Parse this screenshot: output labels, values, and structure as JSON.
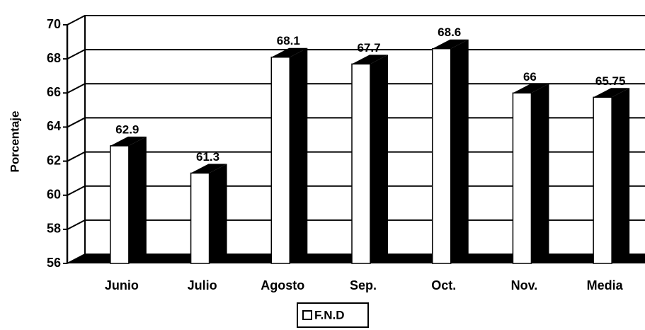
{
  "chart_data": {
    "type": "bar3d",
    "y_label": "Porcentaje",
    "categories": [
      "Junio",
      "Julio",
      "Agosto",
      "Sep.",
      "Oct.",
      "Nov.",
      "Media"
    ],
    "series": [
      {
        "name": "F.N.D",
        "color": "#ffffff",
        "values": [
          62.9,
          61.3,
          68.1,
          67.7,
          68.6,
          66,
          65.75
        ]
      }
    ],
    "ylim": [
      56,
      70
    ],
    "yticks": [
      56,
      58,
      60,
      62,
      64,
      66,
      68,
      70
    ],
    "grid": true,
    "legend": "bottom"
  }
}
